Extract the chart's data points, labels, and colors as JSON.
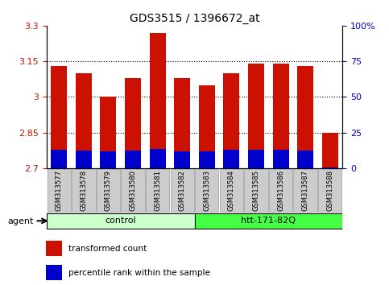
{
  "title": "GDS3515 / 1396672_at",
  "samples": [
    "GSM313577",
    "GSM313578",
    "GSM313579",
    "GSM313580",
    "GSM313581",
    "GSM313582",
    "GSM313583",
    "GSM313584",
    "GSM313585",
    "GSM313586",
    "GSM313587",
    "GSM313588"
  ],
  "red_tops": [
    3.13,
    3.1,
    3.0,
    3.08,
    3.27,
    3.08,
    3.05,
    3.1,
    3.14,
    3.14,
    3.13,
    2.85
  ],
  "blue_tops": [
    2.776,
    2.774,
    2.772,
    2.773,
    2.78,
    2.772,
    2.772,
    2.776,
    2.776,
    2.776,
    2.774,
    2.704
  ],
  "base": 2.7,
  "ylim_left": [
    2.7,
    3.3
  ],
  "ylim_right": [
    0,
    100
  ],
  "yticks_left": [
    2.7,
    2.85,
    3.0,
    3.15,
    3.3
  ],
  "ytick_labels_left": [
    "2.7",
    "2.85",
    "3",
    "3.15",
    "3.3"
  ],
  "yticks_right": [
    0,
    25,
    50,
    75,
    100
  ],
  "ytick_labels_right": [
    "0",
    "25",
    "50",
    "75",
    "100%"
  ],
  "gridlines": [
    2.85,
    3.0,
    3.15
  ],
  "bar_width": 0.65,
  "red_color": "#cc1100",
  "blue_color": "#0000cc",
  "control_samples": 6,
  "control_label": "control",
  "htt_label": "htt-171-82Q",
  "agent_label": "agent",
  "control_color": "#ccffcc",
  "htt_color": "#44ff44",
  "legend_red": "transformed count",
  "legend_blue": "percentile rank within the sample",
  "plot_bg": "#ffffff"
}
